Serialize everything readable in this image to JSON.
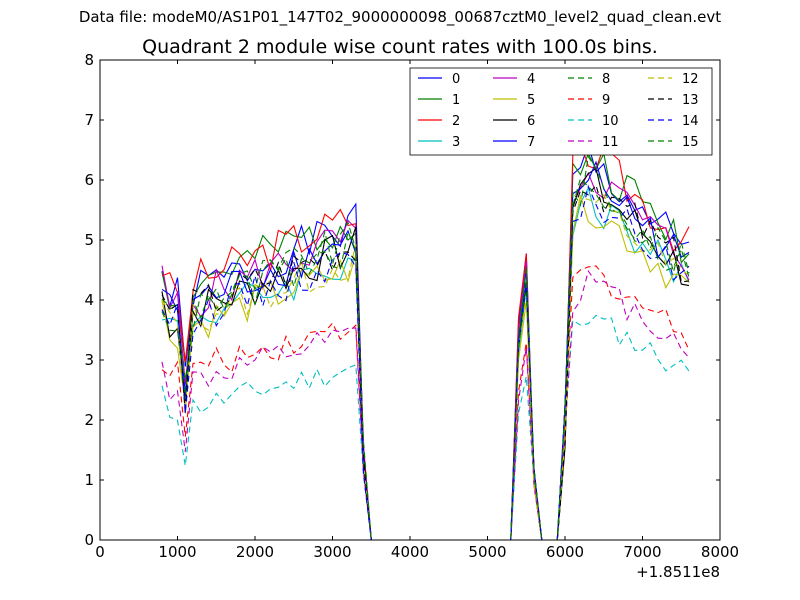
{
  "suptitle": "Data file: modeM0/AS1P01_147T02_9000000098_00687cztM0_level2_quad_clean.evt",
  "chart_data": {
    "type": "line",
    "title": "Quadrant 2 module wise count rates with 100.0s bins.",
    "xlabel": "",
    "ylabel": "",
    "x_offset_label": "+1.8511e8",
    "xlim": [
      0,
      8000
    ],
    "ylim": [
      0,
      8
    ],
    "xticks": [
      0,
      1000,
      2000,
      3000,
      4000,
      5000,
      6000,
      7000,
      8000
    ],
    "yticks": [
      0,
      1,
      2,
      3,
      4,
      5,
      6,
      7,
      8
    ],
    "legend_position": "top-right",
    "segments": [
      {
        "x_start": 800,
        "x_end": 3300,
        "step": 100
      },
      {
        "x_start": 3400,
        "x_end": 5200,
        "step": 100
      },
      {
        "x_start": 5300,
        "x_end": 5700,
        "step": 100
      },
      {
        "x_start": 5800,
        "x_end": 6000,
        "step": 100
      },
      {
        "x_start": 6100,
        "x_end": 7600,
        "step": 100
      }
    ],
    "series": [
      {
        "name": "0",
        "color": "#0000ff",
        "style": "solid",
        "base": 4.45,
        "amp": 1.0,
        "seed": 1
      },
      {
        "name": "1",
        "color": "#008000",
        "style": "solid",
        "base": 4.55,
        "amp": 1.0,
        "seed": 2
      },
      {
        "name": "2",
        "color": "#ff0000",
        "style": "solid",
        "base": 4.6,
        "amp": 1.0,
        "seed": 3
      },
      {
        "name": "3",
        "color": "#00bfbf",
        "style": "solid",
        "base": 4.0,
        "amp": 0.9,
        "seed": 4
      },
      {
        "name": "4",
        "color": "#bf00bf",
        "style": "solid",
        "base": 4.3,
        "amp": 1.0,
        "seed": 5
      },
      {
        "name": "5",
        "color": "#bfbf00",
        "style": "solid",
        "base": 3.9,
        "amp": 0.9,
        "seed": 6
      },
      {
        "name": "6",
        "color": "#000000",
        "style": "solid",
        "base": 4.1,
        "amp": 1.0,
        "seed": 7
      },
      {
        "name": "7",
        "color": "#0000ff",
        "style": "solid",
        "base": 4.25,
        "amp": 1.0,
        "seed": 8
      },
      {
        "name": "8",
        "color": "#008000",
        "style": "dashed",
        "base": 4.2,
        "amp": 1.0,
        "seed": 9
      },
      {
        "name": "9",
        "color": "#ff0000",
        "style": "dashed",
        "base": 3.2,
        "amp": 0.7,
        "seed": 10
      },
      {
        "name": "10",
        "color": "#00bfbf",
        "style": "dashed",
        "base": 2.6,
        "amp": 0.6,
        "seed": 11
      },
      {
        "name": "11",
        "color": "#bf00bf",
        "style": "dashed",
        "base": 3.0,
        "amp": 0.7,
        "seed": 12
      },
      {
        "name": "12",
        "color": "#bfbf00",
        "style": "dashed",
        "base": 4.0,
        "amp": 0.9,
        "seed": 13
      },
      {
        "name": "13",
        "color": "#000000",
        "style": "dashed",
        "base": 4.15,
        "amp": 1.0,
        "seed": 14
      },
      {
        "name": "14",
        "color": "#0000ff",
        "style": "dashed",
        "base": 4.05,
        "amp": 0.9,
        "seed": 15
      },
      {
        "name": "15",
        "color": "#008000",
        "style": "dashed",
        "base": 4.1,
        "amp": 1.0,
        "seed": 16
      }
    ]
  }
}
